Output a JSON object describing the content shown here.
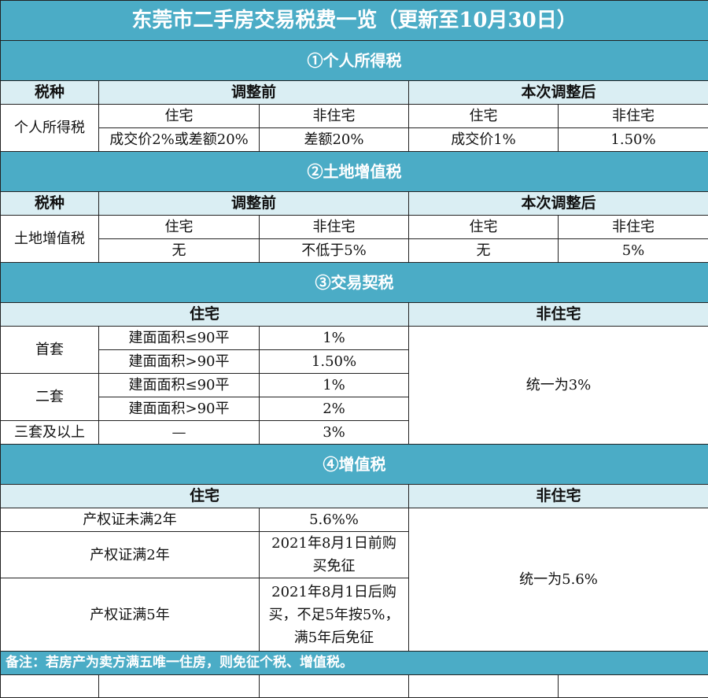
{
  "title": "东莞市二手房交易税费一览（更新至10月30日）",
  "colors": {
    "section_bg": "#4bacc6",
    "header_bg": "#daeef3"
  },
  "s1": {
    "title": "①个人所得税",
    "h_tax": "税种",
    "h_before": "调整前",
    "h_after": "本次调整后",
    "name": "个人所得税",
    "sub": [
      "住宅",
      "非住宅",
      "住宅",
      "非住宅"
    ],
    "vals": [
      "成交价2%或差额20%",
      "差额20%",
      "成交价1%",
      "1.50%"
    ]
  },
  "s2": {
    "title": "②土地增值税",
    "h_tax": "税种",
    "h_before": "调整前",
    "h_after": "本次调整后",
    "name": "土地增值税",
    "sub": [
      "住宅",
      "非住宅",
      "住宅",
      "非住宅"
    ],
    "vals": [
      "无",
      "不低于5%",
      "无",
      "5%"
    ]
  },
  "s3": {
    "title": "③交易契税",
    "h_res": "住宅",
    "h_nonres": "非住宅",
    "first": "首套",
    "second": "二套",
    "third": "三套及以上",
    "rows": [
      {
        "cond": "建面面积≤90平",
        "val": "1%"
      },
      {
        "cond": "建面面积>90平",
        "val": "1.50%"
      },
      {
        "cond": "建面面积≤90平",
        "val": "1%"
      },
      {
        "cond": "建面面积>90平",
        "val": "2%"
      },
      {
        "cond": "—",
        "val": "3%"
      }
    ],
    "nonres": "统一为3%"
  },
  "s4": {
    "title": "④增值税",
    "h_res": "住宅",
    "h_nonres": "非住宅",
    "rows": [
      {
        "cond": "产权证未满2年",
        "val": "5.6%%"
      },
      {
        "cond": "产权证满2年",
        "val": "2021年8月1日前购买免征"
      },
      {
        "cond": "产权证满5年",
        "val": "2021年8月1日后购买，不足5年按5%，满5年后免征"
      }
    ],
    "nonres": "统一为5.6%"
  },
  "note": "备注：若房产为卖方满五唯一住房，则免征个税、增值税。"
}
